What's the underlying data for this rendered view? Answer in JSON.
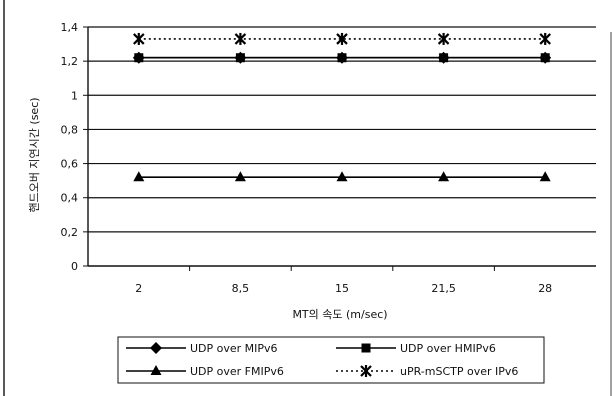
{
  "chart_data": {
    "type": "line",
    "title": "",
    "xlabel": "MT의 속도 (m/sec)",
    "ylabel": "핸드오버 지연시간 (sec)",
    "categories": [
      "2",
      "8,5",
      "15",
      "21,5",
      "28"
    ],
    "ylim": [
      0,
      1.4
    ],
    "yticks": [
      "0",
      "0,2",
      "0,4",
      "0,6",
      "0,8",
      "1",
      "1,2",
      "1,4"
    ],
    "grid": true,
    "legend_position": "bottom",
    "series": [
      {
        "name": "UDP over MIPv6",
        "marker": "diamond",
        "dash": "solid",
        "values": [
          1.22,
          1.22,
          1.22,
          1.22,
          1.22
        ]
      },
      {
        "name": "UDP over HMIPv6",
        "marker": "square",
        "dash": "solid",
        "values": [
          1.22,
          1.22,
          1.22,
          1.22,
          1.22
        ]
      },
      {
        "name": "UDP over FMIPv6",
        "marker": "triangle",
        "dash": "solid",
        "values": [
          0.52,
          0.52,
          0.52,
          0.52,
          0.52
        ]
      },
      {
        "name": "uPR-mSCTP over IPv6",
        "marker": "star",
        "dash": "dotted",
        "values": [
          1.33,
          1.33,
          1.33,
          1.33,
          1.33
        ]
      }
    ]
  }
}
